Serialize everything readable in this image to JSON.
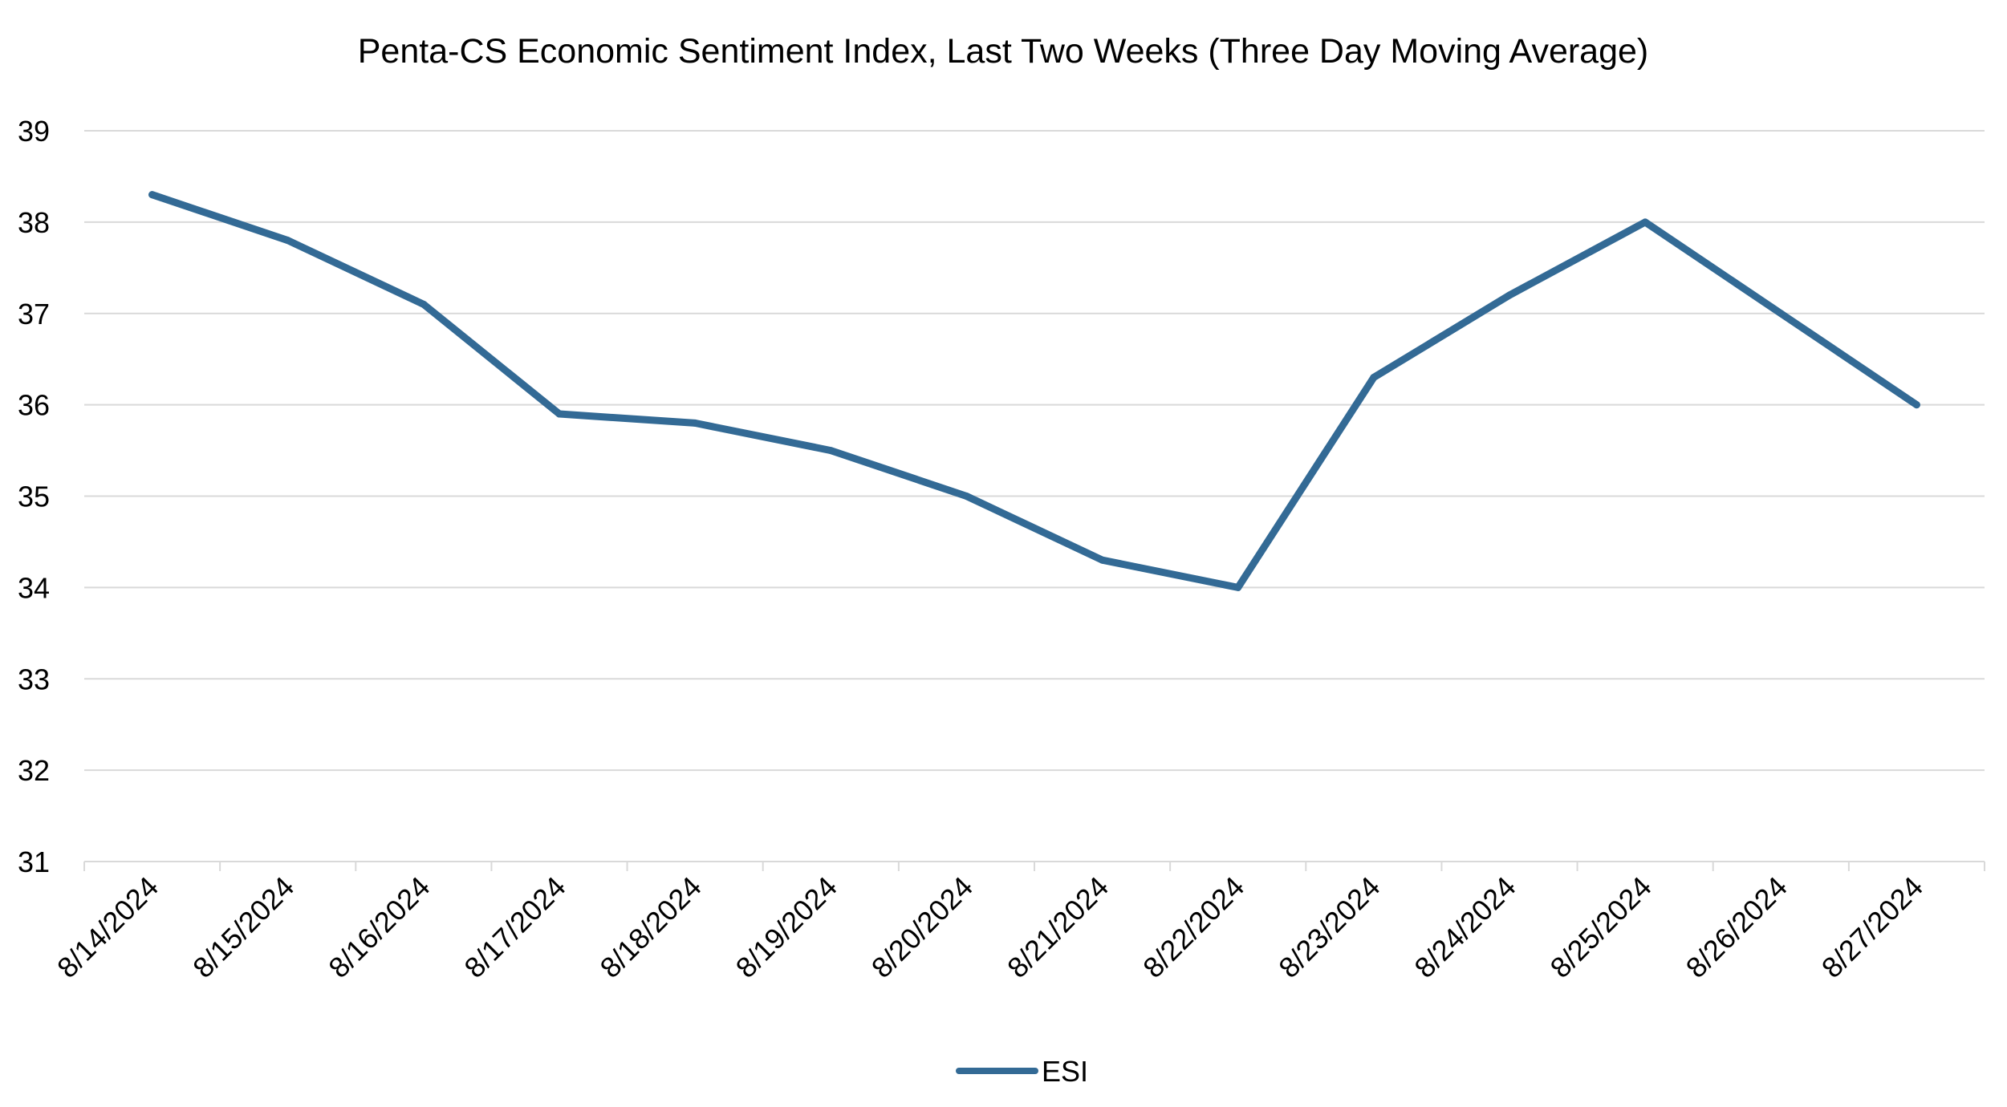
{
  "chart_data": {
    "type": "line",
    "title": "Penta-CS Economic Sentiment Index, Last Two Weeks (Three Day Moving Average)",
    "xlabel": "",
    "ylabel": "",
    "categories": [
      "8/14/2024",
      "8/15/2024",
      "8/16/2024",
      "8/17/2024",
      "8/18/2024",
      "8/19/2024",
      "8/20/2024",
      "8/21/2024",
      "8/22/2024",
      "8/23/2024",
      "8/24/2024",
      "8/25/2024",
      "8/26/2024",
      "8/27/2024"
    ],
    "series": [
      {
        "name": "ESI",
        "color": "#336a95",
        "values": [
          38.3,
          37.8,
          37.1,
          35.9,
          35.8,
          35.5,
          35.0,
          34.3,
          34.0,
          36.3,
          37.2,
          38.0,
          37.0,
          36.0
        ]
      }
    ],
    "yticks": [
      "31",
      "32",
      "33",
      "34",
      "35",
      "36",
      "37",
      "38",
      "39"
    ],
    "ylim": [
      31,
      39
    ],
    "grid": "horizontal",
    "legend": "bottom-center"
  }
}
